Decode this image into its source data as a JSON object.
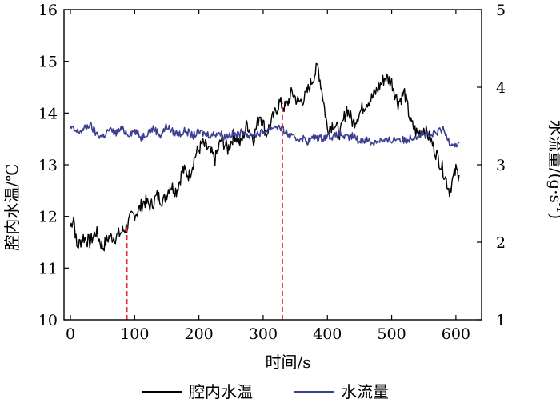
{
  "chart_data": {
    "type": "line",
    "xlabel": "时间/s",
    "ylabel_left": "腔内水温/℃",
    "ylabel_right": "水流量/(g·s",
    "ylabel_right_superscript": "-1",
    "ylabel_right_suffix": ")",
    "xlim": [
      -10,
      640
    ],
    "ylim_left": [
      10,
      16
    ],
    "ylim_right": [
      1,
      5
    ],
    "x_ticks": [
      "0",
      "100",
      "200",
      "300",
      "400",
      "500",
      "600"
    ],
    "y_left_ticks": [
      "10",
      "11",
      "12",
      "13",
      "14",
      "15",
      "16"
    ],
    "y_right_ticks": [
      "1",
      "2",
      "3",
      "4",
      "5"
    ],
    "legend_placement": "bottom",
    "grid": false,
    "colors": {
      "temperature": "#000000",
      "flow": "#3a3f8f",
      "marker": "#e8262a"
    },
    "vlines": [
      88,
      330
    ],
    "series": [
      {
        "name": "腔内水温",
        "axis": "left",
        "x": [
          0,
          5,
          10,
          20,
          30,
          40,
          50,
          60,
          70,
          80,
          88,
          95,
          105,
          115,
          125,
          135,
          145,
          155,
          165,
          175,
          185,
          195,
          205,
          215,
          225,
          235,
          245,
          255,
          265,
          275,
          285,
          295,
          305,
          315,
          325,
          335,
          345,
          355,
          365,
          375,
          385,
          392,
          400,
          410,
          420,
          430,
          440,
          450,
          460,
          470,
          480,
          490,
          500,
          510,
          520,
          530,
          540,
          550,
          560,
          570,
          580,
          590,
          600,
          605
        ],
        "values": [
          11.8,
          12.0,
          11.4,
          11.6,
          11.5,
          11.7,
          11.4,
          11.6,
          11.6,
          11.7,
          11.8,
          12.0,
          12.1,
          12.3,
          12.2,
          12.4,
          12.3,
          12.6,
          12.5,
          12.9,
          12.8,
          13.2,
          13.4,
          13.3,
          13.1,
          13.5,
          13.3,
          13.6,
          13.4,
          13.8,
          13.5,
          14.0,
          13.6,
          13.9,
          14.2,
          14.1,
          14.4,
          14.2,
          14.3,
          14.6,
          14.9,
          14.4,
          13.7,
          13.8,
          13.6,
          14.1,
          13.8,
          14.0,
          14.2,
          14.3,
          14.5,
          14.7,
          14.6,
          14.2,
          14.4,
          13.8,
          13.6,
          13.7,
          13.5,
          13.2,
          12.9,
          12.5,
          12.9,
          12.8
        ]
      },
      {
        "name": "水流量",
        "axis": "right",
        "x": [
          0,
          10,
          20,
          30,
          40,
          50,
          60,
          70,
          80,
          90,
          100,
          110,
          120,
          130,
          140,
          150,
          160,
          170,
          180,
          190,
          200,
          210,
          220,
          230,
          240,
          250,
          260,
          270,
          280,
          290,
          300,
          310,
          320,
          330,
          340,
          350,
          360,
          370,
          380,
          390,
          400,
          410,
          420,
          430,
          440,
          450,
          460,
          470,
          480,
          490,
          500,
          510,
          520,
          530,
          540,
          550,
          560,
          570,
          580,
          590,
          600,
          605
        ],
        "values": [
          3.48,
          3.42,
          3.45,
          3.52,
          3.4,
          3.36,
          3.45,
          3.41,
          3.46,
          3.4,
          3.44,
          3.35,
          3.42,
          3.47,
          3.38,
          3.5,
          3.42,
          3.4,
          3.44,
          3.37,
          3.42,
          3.4,
          3.38,
          3.42,
          3.36,
          3.4,
          3.38,
          3.44,
          3.36,
          3.4,
          3.42,
          3.47,
          3.5,
          3.46,
          3.38,
          3.33,
          3.35,
          3.3,
          3.36,
          3.34,
          3.38,
          3.36,
          3.4,
          3.34,
          3.37,
          3.3,
          3.33,
          3.28,
          3.32,
          3.3,
          3.32,
          3.34,
          3.31,
          3.35,
          3.38,
          3.4,
          3.36,
          3.42,
          3.45,
          3.3,
          3.26,
          3.28
        ]
      }
    ]
  }
}
